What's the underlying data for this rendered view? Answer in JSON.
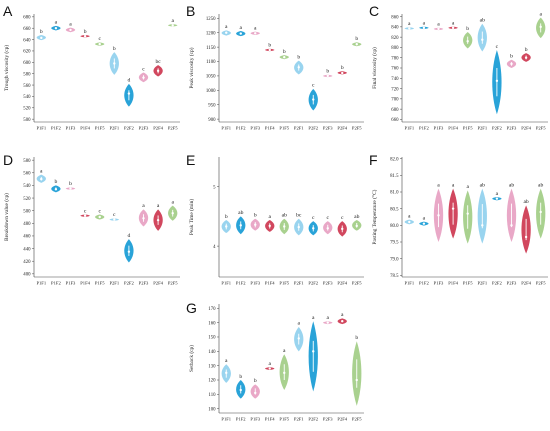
{
  "colors": [
    "#93d2ee",
    "#1d9ed6",
    "#e8a3c4",
    "#cf3d55",
    "#a4cf89"
  ],
  "chart_data": [
    {
      "panel": "A",
      "type": "violin",
      "ylabel": "Trough viscosity (cp)",
      "categories": [
        "P1F1",
        "P1F2",
        "P1F3",
        "P1F4",
        "P1F5",
        "P2F1",
        "P2F2",
        "P2F3",
        "P2F4",
        "P2F5"
      ],
      "yticks": [
        "500",
        "520",
        "540",
        "560",
        "580",
        "600",
        "620",
        "640",
        "660",
        "680"
      ],
      "ylim": [
        495,
        685
      ],
      "grid": false,
      "values": [
        643,
        660,
        657,
        646,
        632,
        598,
        545,
        573,
        585,
        665
      ],
      "ranges": [
        [
          639,
          648
        ],
        [
          656,
          664
        ],
        [
          653,
          661
        ],
        [
          645,
          647
        ],
        [
          629,
          635
        ],
        [
          578,
          618
        ],
        [
          522,
          562
        ],
        [
          565,
          582
        ],
        [
          575,
          595
        ],
        [
          663,
          667
        ]
      ],
      "letters": [
        "b",
        "a",
        "a",
        "b",
        "c",
        "b",
        "d",
        "c",
        "bc",
        "a"
      ]
    },
    {
      "panel": "B",
      "type": "violin",
      "ylabel": "Peak viscosity (cp)",
      "categories": [
        "P1F1",
        "P1F2",
        "P1F3",
        "P1F4",
        "P1F5",
        "P2F1",
        "P2F2",
        "P2F3",
        "P2F4",
        "P2F5"
      ],
      "yticks": [
        "900",
        "950",
        "1000",
        "1050",
        "1100",
        "1150",
        "1200",
        "1250"
      ],
      "ylim": [
        890,
        1265
      ],
      "grid": false,
      "values": [
        1200,
        1197,
        1198,
        1140,
        1115,
        1080,
        968,
        1050,
        1060,
        1160
      ],
      "ranges": [
        [
          1190,
          1208
        ],
        [
          1188,
          1206
        ],
        [
          1192,
          1204
        ],
        [
          1138,
          1142
        ],
        [
          1108,
          1122
        ],
        [
          1055,
          1103
        ],
        [
          930,
          1005
        ],
        [
          1049,
          1051
        ],
        [
          1055,
          1066
        ],
        [
          1153,
          1167
        ]
      ],
      "letters": [
        "a",
        "a",
        "a",
        "b",
        "b",
        "b",
        "c",
        "b",
        "b",
        "b"
      ]
    },
    {
      "panel": "C",
      "type": "violin",
      "ylabel": "Final viscosity (cp)",
      "categories": [
        "P1F1",
        "P1F2",
        "P1F3",
        "P1F4",
        "P1F5",
        "P2F1",
        "P2F2",
        "P2F3",
        "P2F4",
        "P2F5"
      ],
      "yticks": [
        "660",
        "680",
        "700",
        "720",
        "740",
        "760",
        "780",
        "800",
        "820",
        "840",
        "860"
      ],
      "ylim": [
        655,
        865
      ],
      "grid": false,
      "values": [
        837,
        838,
        836,
        838,
        812,
        815,
        735,
        768,
        780,
        840
      ],
      "ranges": [
        [
          836,
          838
        ],
        [
          836,
          840
        ],
        [
          834,
          838
        ],
        [
          836,
          840
        ],
        [
          798,
          830
        ],
        [
          792,
          846
        ],
        [
          670,
          795
        ],
        [
          760,
          776
        ],
        [
          772,
          789
        ],
        [
          818,
          858
        ]
      ],
      "letters": [
        "a",
        "a",
        "a",
        "a",
        "b",
        "ab",
        "c",
        "b",
        "b",
        "a"
      ]
    },
    {
      "panel": "D",
      "type": "violin",
      "ylabel": "Breakdown value (cp)",
      "categories": [
        "P1F1",
        "P1F2",
        "P1F3",
        "P1F4",
        "P1F5",
        "P2F1",
        "P2F2",
        "P2F3",
        "P2F4",
        "P2F5"
      ],
      "yticks": [
        "400",
        "420",
        "440",
        "460",
        "480",
        "500",
        "520",
        "540",
        "560",
        "580"
      ],
      "ylim": [
        395,
        585
      ],
      "grid": false,
      "values": [
        550,
        534,
        535,
        492,
        490,
        486,
        435,
        488,
        485,
        496
      ],
      "ranges": [
        [
          544,
          557
        ],
        [
          529,
          540
        ],
        [
          534,
          536
        ],
        [
          491,
          493
        ],
        [
          486,
          494
        ],
        [
          485,
          487
        ],
        [
          418,
          455
        ],
        [
          475,
          502
        ],
        [
          468,
          502
        ],
        [
          484,
          508
        ]
      ],
      "letters": [
        "a",
        "b",
        "b",
        "c",
        "c",
        "c",
        "d",
        "a",
        "a",
        "a"
      ]
    },
    {
      "panel": "E",
      "type": "violin",
      "ylabel": "Peak Time (min)",
      "categories": [
        "P1F1",
        "P1F2",
        "P1F3",
        "P1F4",
        "P1F5",
        "P2F1",
        "P2F2",
        "P2F3",
        "P2F4",
        "P2F5"
      ],
      "yticks": [
        "4",
        "5"
      ],
      "ylim": [
        3.48,
        5.5
      ],
      "grid": false,
      "values": [
        4.33,
        4.35,
        4.36,
        4.34,
        4.33,
        4.32,
        4.3,
        4.3,
        4.29,
        4.34
      ],
      "ranges": [
        [
          4.22,
          4.44
        ],
        [
          4.2,
          4.5
        ],
        [
          4.26,
          4.46
        ],
        [
          4.24,
          4.44
        ],
        [
          4.2,
          4.46
        ],
        [
          4.18,
          4.46
        ],
        [
          4.18,
          4.42
        ],
        [
          4.2,
          4.42
        ],
        [
          4.16,
          4.42
        ],
        [
          4.26,
          4.44
        ]
      ],
      "letters": [
        "b",
        "ab",
        "b",
        "a",
        "ab",
        "bc",
        "c",
        "c",
        "c",
        "ab"
      ]
    },
    {
      "panel": "F",
      "type": "violin",
      "ylabel": "Pasting Temperature (°C)",
      "categories": [
        "P1F1",
        "P1F2",
        "P1F3",
        "P1F4",
        "P1F5",
        "P2F1",
        "P2F2",
        "P2F3",
        "P2F4",
        "P2F5"
      ],
      "yticks": [
        "78.5",
        "79.0",
        "79.5",
        "80.0",
        "80.5",
        "81.0",
        "81.5",
        "82.0"
      ],
      "ylim": [
        78.45,
        82.05
      ],
      "grid": false,
      "values": [
        80.1,
        80.05,
        80.3,
        80.5,
        80.35,
        80.0,
        80.8,
        80.0,
        79.65,
        80.4
      ],
      "ranges": [
        [
          80.03,
          80.17
        ],
        [
          79.99,
          80.11
        ],
        [
          79.5,
          81.1
        ],
        [
          79.6,
          81.1
        ],
        [
          79.45,
          81.05
        ],
        [
          79.45,
          81.1
        ],
        [
          80.75,
          80.85
        ],
        [
          79.5,
          81.1
        ],
        [
          79.15,
          80.6
        ],
        [
          79.6,
          81.1
        ]
      ],
      "letters": [
        "a",
        "a",
        "a",
        "a",
        "a",
        "ab",
        "a",
        "ab",
        "ab",
        "ab"
      ]
    },
    {
      "panel": "G",
      "type": "violin",
      "ylabel": "Setback (cp)",
      "categories": [
        "P1F1",
        "P1F2",
        "P1F3",
        "P1F4",
        "P1F5",
        "P2F1",
        "P2F2",
        "P2F3",
        "P2F4",
        "P2F5"
      ],
      "yticks": [
        "100",
        "110",
        "120",
        "130",
        "140",
        "150",
        "160",
        "170"
      ],
      "ylim": [
        97,
        173
      ],
      "grid": false,
      "values": [
        125,
        113,
        111,
        128,
        125,
        149,
        140,
        160,
        161,
        120
      ],
      "ranges": [
        [
          118,
          131
        ],
        [
          107,
          120
        ],
        [
          107,
          117
        ],
        [
          127,
          129
        ],
        [
          113,
          138
        ],
        [
          140,
          157
        ],
        [
          112,
          161
        ],
        [
          159,
          161
        ],
        [
          159,
          163
        ],
        [
          102,
          147
        ]
      ],
      "letters": [
        "a",
        "b",
        "b",
        "a",
        "a",
        "a",
        "a",
        "a",
        "a",
        "b"
      ]
    }
  ]
}
